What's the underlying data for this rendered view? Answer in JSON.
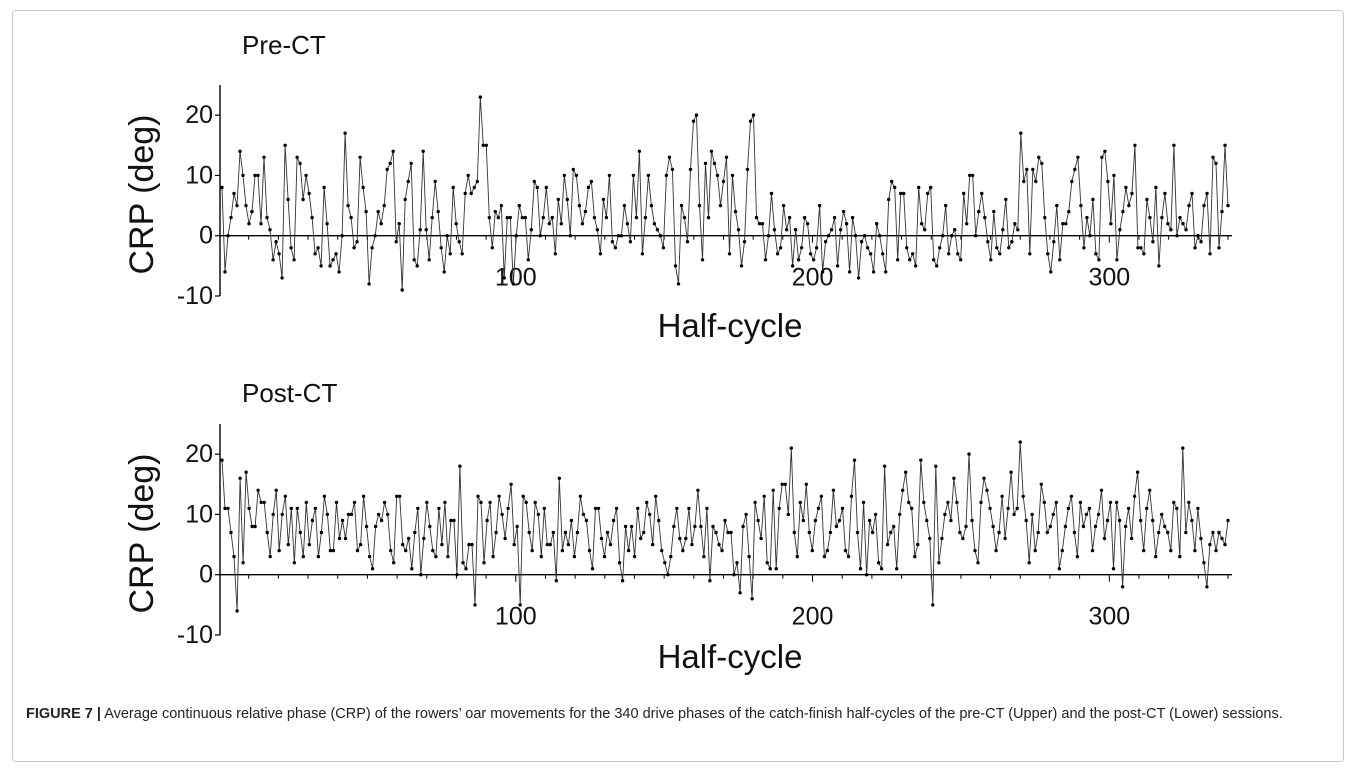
{
  "chart_data": [
    {
      "type": "scatter",
      "title": "Pre-CT",
      "xlabel": "Half-cycle",
      "ylabel": "CRP (deg)",
      "xlim": [
        1,
        340
      ],
      "ylim": [
        -10,
        25
      ],
      "xticks": [
        100,
        200,
        300
      ],
      "yticks": [
        -10,
        0,
        10,
        20
      ],
      "grid": false,
      "connected": true,
      "n_points": 340,
      "series": [
        {
          "y": [
            8,
            -6,
            0,
            3,
            7,
            5,
            14,
            10,
            5,
            2,
            4,
            10,
            10,
            2,
            13,
            3,
            1,
            -4,
            -1,
            -3,
            -7,
            15,
            6,
            -2,
            -4,
            13,
            12,
            6,
            10,
            7,
            3,
            -3,
            -2,
            -5,
            8,
            2,
            -5,
            -4,
            -3,
            -6,
            0,
            17,
            5,
            3,
            -2,
            -1,
            13,
            8,
            4,
            -8,
            -2,
            0,
            4,
            2,
            5,
            11,
            12,
            14,
            -1,
            2,
            -9,
            6,
            9,
            12,
            -4,
            -5,
            1,
            14,
            1,
            -4,
            3,
            9,
            4,
            -2,
            -6,
            0,
            -3,
            8,
            2,
            -1,
            -3,
            7,
            10,
            7,
            8,
            9,
            23,
            15,
            15,
            3,
            -2,
            4,
            3,
            5,
            -7,
            3,
            3,
            -8,
            0,
            5,
            3,
            3,
            -4,
            1,
            9,
            8,
            0,
            3,
            8,
            2,
            3,
            -3,
            6,
            2,
            10,
            6,
            0,
            11,
            10,
            5,
            2,
            4,
            8,
            9,
            3,
            1,
            -3,
            6,
            3,
            10,
            -1,
            -2,
            0,
            0,
            5,
            2,
            -1,
            10,
            3,
            14,
            -3,
            3,
            10,
            5,
            2,
            1,
            0,
            -2,
            10,
            13,
            11,
            -5,
            -8,
            5,
            3,
            -1,
            11,
            19,
            20,
            5,
            -4,
            12,
            3,
            14,
            12,
            10,
            5,
            9,
            13,
            -3,
            10,
            4,
            1,
            -5,
            -1,
            11,
            19,
            20,
            3,
            2,
            2,
            -4,
            0,
            7,
            1,
            -3,
            -2,
            5,
            1,
            3,
            -5,
            1,
            -4,
            -2,
            3,
            2,
            -3,
            -4,
            -2,
            5,
            -6,
            -1,
            0,
            1,
            3,
            -5,
            1,
            4,
            2,
            -6,
            3,
            0,
            -7,
            -1,
            0,
            -2,
            -3,
            -6,
            2,
            0,
            -3,
            -6,
            6,
            9,
            8,
            -4,
            7,
            7,
            -2,
            -4,
            -3,
            -5,
            8,
            2,
            1,
            7,
            8,
            -4,
            -5,
            -2,
            0,
            5,
            -3,
            0,
            1,
            -3,
            -4,
            7,
            2,
            10,
            10,
            0,
            4,
            7,
            3,
            -1,
            -4,
            4,
            -2,
            -3,
            1,
            6,
            -2,
            -1,
            2,
            1,
            17,
            9,
            11,
            -3,
            11,
            9,
            13,
            12,
            3,
            -3,
            -6,
            -1,
            5,
            -4,
            2,
            2,
            4,
            9,
            11,
            13,
            5,
            -2,
            3,
            0,
            6,
            -3,
            -4,
            13,
            14,
            9,
            2,
            10,
            -4,
            1,
            4,
            8,
            5,
            7,
            15,
            -2,
            -2,
            -3,
            6,
            3,
            -1,
            8,
            -5,
            3,
            7,
            2,
            1,
            15,
            0,
            3,
            2,
            1,
            5,
            7,
            -2,
            0,
            -1,
            5,
            7,
            -3,
            13,
            12,
            -2,
            4,
            15,
            5
          ]
        }
      ]
    },
    {
      "type": "scatter",
      "title": "Post-CT",
      "xlabel": "Half-cycle",
      "ylabel": "CRP (deg)",
      "xlim": [
        1,
        340
      ],
      "ylim": [
        -10,
        25
      ],
      "xticks": [
        100,
        200,
        300
      ],
      "yticks": [
        -10,
        0,
        10,
        20
      ],
      "grid": false,
      "connected": true,
      "n_points": 340,
      "series": [
        {
          "y": [
            19,
            11,
            11,
            7,
            3,
            -6,
            16,
            2,
            17,
            11,
            8,
            8,
            14,
            12,
            12,
            7,
            3,
            10,
            14,
            4,
            10,
            13,
            5,
            11,
            2,
            11,
            7,
            3,
            12,
            5,
            9,
            11,
            3,
            7,
            13,
            10,
            4,
            4,
            12,
            6,
            9,
            6,
            10,
            10,
            12,
            4,
            5,
            13,
            8,
            3,
            1,
            8,
            10,
            9,
            12,
            10,
            4,
            2,
            13,
            13,
            5,
            4,
            6,
            1,
            7,
            11,
            0,
            6,
            12,
            8,
            4,
            3,
            11,
            5,
            12,
            3,
            9,
            9,
            0,
            18,
            2,
            1,
            5,
            5,
            -5,
            13,
            12,
            2,
            9,
            12,
            3,
            7,
            13,
            10,
            6,
            11,
            15,
            5,
            8,
            -5,
            13,
            12,
            7,
            4,
            12,
            10,
            3,
            11,
            5,
            5,
            7,
            -1,
            16,
            4,
            7,
            5,
            9,
            3,
            7,
            13,
            10,
            9,
            4,
            1,
            11,
            11,
            6,
            3,
            7,
            5,
            9,
            11,
            2,
            -1,
            8,
            4,
            8,
            3,
            11,
            6,
            7,
            12,
            10,
            5,
            13,
            9,
            4,
            2,
            0,
            3,
            8,
            11,
            6,
            4,
            6,
            11,
            5,
            8,
            14,
            8,
            3,
            11,
            -1,
            8,
            7,
            5,
            4,
            9,
            7,
            7,
            0,
            2,
            -3,
            8,
            10,
            3,
            -4,
            12,
            9,
            6,
            13,
            2,
            1,
            14,
            1,
            11,
            15,
            15,
            10,
            21,
            7,
            3,
            12,
            9,
            15,
            7,
            4,
            9,
            11,
            13,
            3,
            4,
            7,
            14,
            8,
            9,
            11,
            4,
            3,
            13,
            19,
            7,
            1,
            12,
            0,
            9,
            7,
            10,
            2,
            1,
            18,
            5,
            7,
            8,
            1,
            10,
            14,
            17,
            12,
            11,
            3,
            5,
            19,
            12,
            9,
            6,
            -5,
            18,
            2,
            6,
            10,
            12,
            9,
            16,
            12,
            7,
            6,
            8,
            20,
            9,
            4,
            2,
            12,
            16,
            14,
            11,
            8,
            4,
            7,
            13,
            6,
            11,
            17,
            10,
            11,
            22,
            13,
            9,
            2,
            10,
            4,
            7,
            15,
            12,
            7,
            8,
            10,
            12,
            1,
            4,
            8,
            11,
            13,
            7,
            3,
            12,
            8,
            10,
            11,
            4,
            8,
            10,
            14,
            6,
            9,
            12,
            1,
            12,
            9,
            -2,
            8,
            11,
            6,
            13,
            17,
            9,
            4,
            11,
            14,
            9,
            3,
            7,
            10,
            8,
            7,
            4,
            12,
            11,
            3,
            21,
            7,
            12,
            9,
            4,
            11,
            6,
            2,
            -2,
            5,
            7,
            4,
            7,
            6,
            5,
            9
          ]
        }
      ]
    }
  ],
  "caption": {
    "label": "FIGURE 7 |",
    "text": "Average continuous relative phase (CRP) of the rowers’ oar movements for the 340 drive phases of the catch-finish half-cycles of the pre-CT (Upper) and the post-CT (Lower) sessions."
  }
}
